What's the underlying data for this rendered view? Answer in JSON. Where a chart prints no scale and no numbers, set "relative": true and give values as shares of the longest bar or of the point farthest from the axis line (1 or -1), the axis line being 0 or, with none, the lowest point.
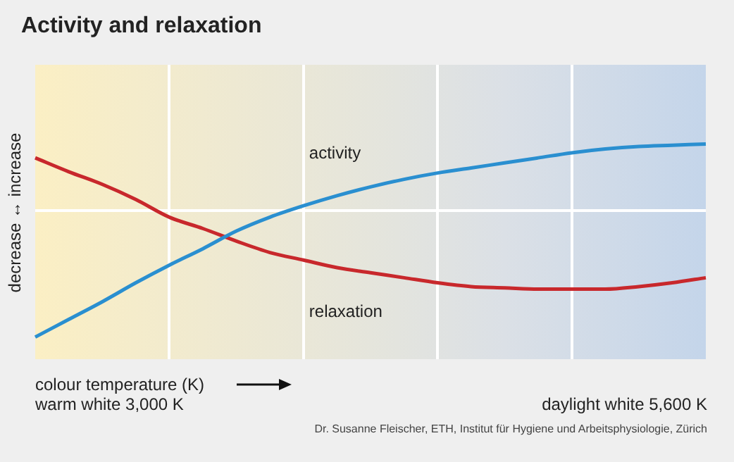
{
  "chart_data": {
    "type": "line",
    "title": "Activity and relaxation",
    "xlabel": "colour temperature (K)",
    "ylabel": "decrease ↔ increase",
    "annotations": [
      "warm white 3,000 K",
      "daylight white 5,600 K",
      "Dr. Susanne Fleischer, ETH, Institut für Hygiene und Arbeitsphysiologie, Zürich"
    ],
    "categories": [
      null,
      null,
      null,
      null,
      null,
      null,
      null,
      null,
      null,
      null,
      null,
      null,
      null,
      null,
      null,
      null,
      null,
      null,
      null,
      null,
      null
    ],
    "relative": true,
    "grid": true,
    "marker": "none",
    "line_style": "solid",
    "series": [
      {
        "name": "activity",
        "color": "#2a8fd0",
        "values": [
          -1,
          -0.86,
          -0.72,
          -0.57,
          -0.43,
          -0.3,
          -0.16,
          -0.05,
          0.04,
          0.12,
          0.19,
          0.25,
          0.3,
          0.34,
          0.38,
          0.42,
          0.46,
          0.49,
          0.51,
          0.52,
          0.53
        ]
      },
      {
        "name": "relaxation",
        "color": "#c8282c",
        "values": [
          0.42,
          0.31,
          0.21,
          0.09,
          -0.05,
          -0.14,
          -0.24,
          -0.33,
          -0.39,
          -0.45,
          -0.49,
          -0.53,
          -0.57,
          -0.6,
          -0.61,
          -0.62,
          -0.62,
          -0.62,
          -0.6,
          -0.57,
          -0.53
        ]
      }
    ]
  }
}
